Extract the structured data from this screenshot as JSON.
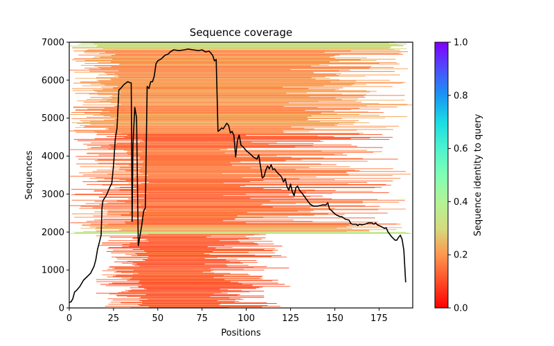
{
  "chart_data": {
    "type": "heatmap",
    "title": "Sequence coverage",
    "xlabel": "Positions",
    "ylabel": "Sequences",
    "xlim": [
      0,
      194
    ],
    "ylim": [
      0,
      7000
    ],
    "x_ticks": [
      0,
      25,
      50,
      75,
      100,
      125,
      150,
      175
    ],
    "x_tick_labels": [
      "0",
      "25",
      "50",
      "75",
      "100",
      "125",
      "150",
      "175"
    ],
    "y_ticks": [
      0,
      1000,
      2000,
      3000,
      4000,
      5000,
      6000,
      7000
    ],
    "y_tick_labels": [
      "0",
      "1000",
      "2000",
      "3000",
      "4000",
      "5000",
      "6000",
      "7000"
    ],
    "grid": false,
    "colorbar": {
      "label": "Sequence identity to query",
      "colormap": "rainbow_r",
      "range": [
        0,
        1
      ],
      "ticks": [
        0.0,
        0.2,
        0.4,
        0.6,
        0.8,
        1.0
      ],
      "tick_labels": [
        "0.0",
        "0.2",
        "0.4",
        "0.6",
        "0.8",
        "1.0"
      ],
      "placement": "right"
    },
    "heatmap_description": {
      "rows_total": 7000,
      "identity_range_observed": [
        0.1,
        0.35
      ],
      "bands": [
        {
          "rows": [
            0,
            1950
          ],
          "x_start_range": [
            15,
            45
          ],
          "x_end_range": [
            75,
            125
          ],
          "identity": 0.12
        },
        {
          "rows": [
            1950,
            2000
          ],
          "x_start_range": [
            0,
            5
          ],
          "x_end_range": [
            190,
            194
          ],
          "identity": 0.33
        },
        {
          "rows": [
            2000,
            2200
          ],
          "x_start_range": [
            5,
            30
          ],
          "x_end_range": [
            150,
            194
          ],
          "identity": 0.22
        },
        {
          "rows": [
            2200,
            4600
          ],
          "x_start_range": [
            0,
            45
          ],
          "x_end_range": [
            85,
            194
          ],
          "identity": 0.15
        },
        {
          "rows": [
            4600,
            6800
          ],
          "x_start_range": [
            0,
            30
          ],
          "x_end_range": [
            120,
            194
          ],
          "identity": 0.2
        },
        {
          "rows": [
            6800,
            7000
          ],
          "x_start_range": [
            0,
            20
          ],
          "x_end_range": [
            180,
            194
          ],
          "identity": 0.3
        }
      ]
    },
    "series": [
      {
        "name": "coverage",
        "color": "#000000",
        "x": [
          0,
          1,
          2,
          3,
          4,
          6,
          8,
          10,
          12,
          14,
          15,
          16,
          17,
          18,
          18.5,
          19,
          21,
          23,
          24,
          25,
          26,
          27,
          28,
          29,
          30,
          31,
          32,
          33,
          34,
          35,
          35.5,
          36,
          37,
          38,
          39,
          40,
          41,
          42,
          43,
          44,
          45,
          46,
          47,
          48,
          49,
          50,
          52,
          54,
          56,
          57,
          59,
          62,
          65,
          67,
          70,
          73,
          75,
          77,
          79,
          81,
          82,
          83,
          84,
          85,
          86,
          87,
          88,
          89,
          90,
          91,
          92,
          93,
          94,
          95,
          96,
          97,
          98,
          100,
          102,
          104,
          106,
          107,
          108,
          109,
          110,
          111,
          112,
          113,
          114,
          115,
          116,
          117,
          119,
          120,
          121,
          122,
          123,
          124,
          125,
          126,
          127,
          128,
          129,
          130,
          132,
          134,
          136,
          138,
          140,
          143,
          145,
          146,
          147,
          148,
          150,
          151,
          153,
          154,
          156,
          158,
          159,
          160,
          162,
          163,
          164,
          165,
          167,
          169,
          171,
          172,
          173,
          174,
          176,
          178,
          179,
          180,
          182,
          184,
          185,
          186,
          187,
          188,
          189,
          190
        ],
        "y": [
          145,
          160,
          240,
          420,
          455,
          565,
          730,
          820,
          910,
          1095,
          1275,
          1550,
          1730,
          1915,
          2640,
          2825,
          2970,
          3190,
          3280,
          3740,
          4465,
          4740,
          5740,
          5780,
          5835,
          5890,
          5925,
          5960,
          5940,
          5925,
          2280,
          4285,
          5285,
          5015,
          1640,
          1915,
          2190,
          2550,
          2640,
          5835,
          5780,
          5960,
          5960,
          6105,
          6435,
          6510,
          6560,
          6655,
          6690,
          6745,
          6800,
          6780,
          6800,
          6820,
          6800,
          6780,
          6800,
          6745,
          6765,
          6655,
          6510,
          6545,
          4650,
          4685,
          4740,
          4720,
          4795,
          4865,
          4810,
          4610,
          4650,
          4540,
          3975,
          4410,
          4555,
          4285,
          4250,
          4140,
          4065,
          3975,
          3920,
          4030,
          3740,
          3425,
          3460,
          3630,
          3740,
          3665,
          3775,
          3645,
          3665,
          3590,
          3500,
          3445,
          3315,
          3405,
          3190,
          3100,
          3265,
          3060,
          2955,
          3170,
          3210,
          3100,
          2990,
          2860,
          2735,
          2680,
          2680,
          2715,
          2715,
          2770,
          2605,
          2570,
          2480,
          2445,
          2405,
          2405,
          2335,
          2315,
          2225,
          2205,
          2205,
          2170,
          2205,
          2190,
          2205,
          2240,
          2240,
          2205,
          2240,
          2190,
          2150,
          2095,
          2115,
          2005,
          1880,
          1785,
          1785,
          1860,
          1915,
          1805,
          1515,
          675
        ]
      }
    ]
  }
}
